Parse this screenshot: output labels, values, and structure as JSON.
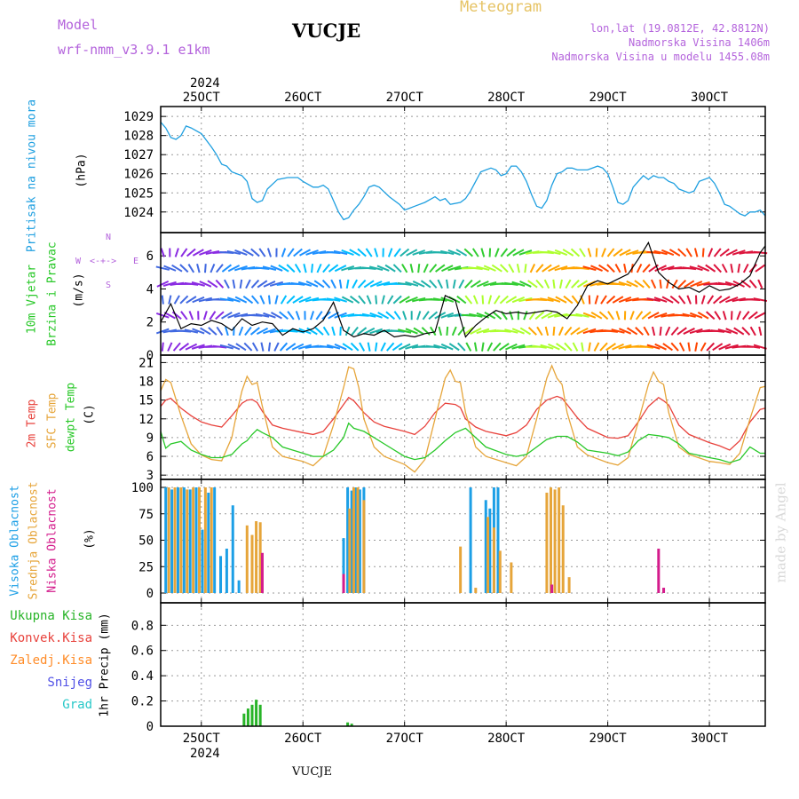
{
  "header": {
    "model_label": "Model",
    "model_name": "wrf-nmm_v3.9.1 e1km",
    "station": "VUCJE",
    "meteogram_title": "Meteogram",
    "lonlat": "lon,lat (19.0812E, 42.8812N)",
    "elevation": "Nadmorska Visina 1406m",
    "model_elevation": "Nadmorska Visina u modelu 1455.08m",
    "footer_station": "VUCJE",
    "watermark": "made by Angel"
  },
  "colors": {
    "pressure": "#1e9fe0",
    "temp2m": "#e8423c",
    "sfc_temp": "#e6a53a",
    "dewpt": "#28c828",
    "high_cloud": "#1c9fe6",
    "mid_cloud": "#e6a53a",
    "low_cloud": "#d41c8c",
    "total_precip": "#28b428",
    "conv_precip": "#e8423c",
    "freezing_precip": "#ff8c28",
    "snow": "#5050e6",
    "graupel": "#28c8c8",
    "wind_label": "#b464dc"
  },
  "time_axis": {
    "year": "2024",
    "tick_labels": [
      "25OCT",
      "26OCT",
      "27OCT",
      "28OCT",
      "29OCT",
      "30OCT"
    ],
    "tick_days": [
      25,
      26,
      27,
      28,
      29,
      30
    ],
    "start_day": 24.6,
    "end_day": 30.55
  },
  "chart_data": [
    {
      "type": "line",
      "id": "pressure",
      "ylabel": "(hPa)",
      "side_labels": [
        "Pritisak na nivou mora"
      ],
      "ylim": [
        1023.2,
        1029.1
      ],
      "yticks": [
        1024,
        1025,
        1026,
        1027,
        1028,
        1029
      ],
      "grid": true,
      "series": [
        {
          "color_key": "pressure",
          "x": [
            24.6,
            24.65,
            24.7,
            24.75,
            24.8,
            24.85,
            24.9,
            25.0,
            25.1,
            25.15,
            25.2,
            25.25,
            25.3,
            25.4,
            25.45,
            25.5,
            25.55,
            25.6,
            25.65,
            25.75,
            25.85,
            25.95,
            26.0,
            26.1,
            26.15,
            26.2,
            26.25,
            26.3,
            26.35,
            26.4,
            26.45,
            26.5,
            26.55,
            26.6,
            26.65,
            26.7,
            26.75,
            26.85,
            26.95,
            27.0,
            27.05,
            27.1,
            27.2,
            27.3,
            27.35,
            27.4,
            27.45,
            27.55,
            27.6,
            27.65,
            27.7,
            27.75,
            27.8,
            27.85,
            27.9,
            27.95,
            28.0,
            28.05,
            28.1,
            28.15,
            28.2,
            28.25,
            28.3,
            28.35,
            28.4,
            28.45,
            28.5,
            28.55,
            28.6,
            28.65,
            28.7,
            28.8,
            28.9,
            28.95,
            29.0,
            29.05,
            29.1,
            29.15,
            29.2,
            29.25,
            29.3,
            29.35,
            29.4,
            29.45,
            29.5,
            29.55,
            29.6,
            29.65,
            29.7,
            29.8,
            29.85,
            29.9,
            30.0,
            30.05,
            30.1,
            30.15,
            30.2,
            30.25,
            30.3,
            30.35,
            30.4,
            30.45,
            30.5,
            30.55
          ],
          "y": [
            1028.7,
            1028.4,
            1027.9,
            1027.8,
            1028.0,
            1028.5,
            1028.4,
            1028.1,
            1027.4,
            1027.0,
            1026.5,
            1026.4,
            1026.1,
            1025.9,
            1025.6,
            1024.7,
            1024.5,
            1024.6,
            1025.2,
            1025.7,
            1025.8,
            1025.8,
            1025.6,
            1025.3,
            1025.3,
            1025.4,
            1025.2,
            1024.6,
            1024.0,
            1023.6,
            1023.7,
            1024.1,
            1024.4,
            1024.8,
            1025.3,
            1025.4,
            1025.3,
            1024.8,
            1024.4,
            1024.1,
            1024.2,
            1024.3,
            1024.5,
            1024.8,
            1024.6,
            1024.7,
            1024.4,
            1024.5,
            1024.7,
            1025.1,
            1025.6,
            1026.1,
            1026.2,
            1026.3,
            1026.2,
            1025.9,
            1026.0,
            1026.4,
            1026.4,
            1026.1,
            1025.6,
            1024.9,
            1024.3,
            1024.2,
            1024.6,
            1025.4,
            1026.0,
            1026.1,
            1026.3,
            1026.3,
            1026.2,
            1026.2,
            1026.4,
            1026.3,
            1026.0,
            1025.3,
            1024.5,
            1024.4,
            1024.6,
            1025.3,
            1025.6,
            1025.9,
            1025.7,
            1025.9,
            1025.8,
            1025.8,
            1025.6,
            1025.5,
            1025.2,
            1025.0,
            1025.1,
            1025.6,
            1025.8,
            1025.5,
            1025.0,
            1024.4,
            1024.3,
            1024.1,
            1023.9,
            1023.8,
            1024.0,
            1024.0,
            1024.1,
            1023.8
          ]
        }
      ]
    },
    {
      "type": "line",
      "id": "wind",
      "ylabel": "(m/s)",
      "side_labels": [
        "10m Vjetar",
        "Brzina i Pravac"
      ],
      "compass": {
        "n": "N",
        "s": "S",
        "w": "W",
        "e": "E"
      },
      "ylim": [
        0,
        7.3
      ],
      "yticks": [
        0,
        2,
        4,
        6
      ],
      "grid": false,
      "series": [
        {
          "name": "speed",
          "x": [
            24.6,
            24.7,
            24.8,
            24.9,
            25.0,
            25.1,
            25.2,
            25.3,
            25.4,
            25.5,
            25.6,
            25.7,
            25.8,
            25.9,
            26.0,
            26.1,
            26.2,
            26.3,
            26.4,
            26.5,
            26.6,
            26.7,
            26.8,
            26.9,
            27.0,
            27.1,
            27.2,
            27.3,
            27.4,
            27.5,
            27.6,
            27.7,
            27.8,
            27.9,
            28.0,
            28.1,
            28.2,
            28.3,
            28.4,
            28.5,
            28.6,
            28.7,
            28.8,
            28.9,
            29.0,
            29.1,
            29.2,
            29.3,
            29.4,
            29.5,
            29.6,
            29.7,
            29.8,
            29.9,
            30.0,
            30.1,
            30.2,
            30.3,
            30.4,
            30.5,
            30.55
          ],
          "y": [
            2.0,
            3.1,
            1.6,
            1.9,
            1.8,
            2.1,
            1.9,
            1.5,
            2.2,
            1.8,
            2.0,
            1.9,
            1.2,
            1.6,
            1.4,
            1.6,
            2.1,
            3.2,
            1.5,
            1.1,
            1.3,
            1.2,
            1.5,
            1.1,
            1.2,
            1.1,
            1.3,
            1.4,
            3.6,
            3.3,
            1.1,
            1.8,
            2.3,
            2.7,
            2.5,
            2.6,
            2.5,
            2.6,
            2.7,
            2.6,
            2.2,
            3.0,
            4.2,
            4.5,
            4.3,
            4.6,
            4.9,
            5.8,
            6.8,
            5.0,
            4.4,
            4.0,
            4.1,
            3.8,
            4.2,
            3.9,
            4.0,
            4.3,
            4.8,
            6.2,
            6.6
          ]
        }
      ]
    },
    {
      "type": "line",
      "id": "temperature",
      "ylabel": "(C)",
      "side_labels": [
        "2m Temp",
        "SFC Temp",
        "dewpt Temp"
      ],
      "ylim": [
        2.6,
        21.2
      ],
      "yticks": [
        3,
        6,
        9,
        12,
        15,
        18,
        21
      ],
      "grid": true,
      "series": [
        {
          "name": "2m Temp",
          "color_key": "temp2m",
          "x": [
            24.6,
            24.65,
            24.7,
            24.8,
            24.9,
            25.0,
            25.1,
            25.2,
            25.3,
            25.4,
            25.45,
            25.5,
            25.55,
            25.6,
            25.7,
            25.8,
            26.0,
            26.1,
            26.2,
            26.3,
            26.4,
            26.45,
            26.5,
            26.6,
            26.7,
            26.8,
            27.0,
            27.1,
            27.2,
            27.3,
            27.4,
            27.5,
            27.55,
            27.6,
            27.7,
            27.8,
            28.0,
            28.1,
            28.2,
            28.3,
            28.4,
            28.5,
            28.55,
            28.6,
            28.7,
            28.8,
            29.0,
            29.1,
            29.2,
            29.3,
            29.4,
            29.5,
            29.55,
            29.6,
            29.7,
            29.8,
            30.0,
            30.1,
            30.2,
            30.3,
            30.4,
            30.5,
            30.55
          ],
          "y": [
            14.0,
            15.0,
            15.3,
            13.7,
            12.5,
            11.5,
            11.0,
            10.7,
            12.5,
            14.5,
            15.0,
            15.1,
            14.6,
            13.2,
            11.0,
            10.5,
            9.8,
            9.5,
            10.0,
            12.0,
            14.3,
            15.4,
            14.9,
            13.0,
            11.5,
            10.8,
            10.0,
            9.5,
            10.8,
            13.0,
            14.5,
            14.3,
            13.8,
            12.0,
            10.7,
            10.0,
            9.3,
            9.8,
            11.0,
            13.5,
            15.0,
            15.6,
            15.3,
            14.3,
            12.2,
            10.5,
            9.0,
            8.9,
            9.3,
            11.5,
            14.0,
            15.4,
            14.9,
            14.2,
            11.0,
            9.5,
            8.2,
            7.7,
            7.0,
            8.5,
            11.5,
            13.5,
            13.7
          ]
        },
        {
          "name": "SFC Temp",
          "color_key": "sfc_temp",
          "x": [
            24.6,
            24.65,
            24.7,
            24.8,
            24.9,
            25.0,
            25.1,
            25.2,
            25.3,
            25.35,
            25.4,
            25.45,
            25.5,
            25.55,
            25.6,
            25.7,
            25.8,
            26.0,
            26.1,
            26.2,
            26.3,
            26.4,
            26.45,
            26.5,
            26.55,
            26.6,
            26.7,
            26.8,
            27.0,
            27.1,
            27.2,
            27.3,
            27.4,
            27.45,
            27.5,
            27.55,
            27.6,
            27.7,
            27.8,
            28.0,
            28.1,
            28.2,
            28.3,
            28.4,
            28.45,
            28.5,
            28.55,
            28.6,
            28.7,
            28.8,
            29.0,
            29.1,
            29.2,
            29.3,
            29.4,
            29.45,
            29.5,
            29.55,
            29.6,
            29.7,
            29.8,
            30.0,
            30.1,
            30.2,
            30.3,
            30.4,
            30.5,
            30.55
          ],
          "y": [
            16.5,
            18.3,
            17.8,
            12.5,
            8.0,
            6.2,
            5.5,
            5.3,
            9.0,
            13.0,
            16.5,
            18.8,
            17.5,
            17.8,
            14.0,
            7.5,
            6.0,
            5.2,
            4.5,
            6.0,
            11.0,
            17.0,
            20.3,
            20.0,
            17.0,
            12.0,
            7.5,
            6.0,
            4.7,
            3.5,
            5.5,
            12.0,
            18.5,
            19.8,
            18.0,
            17.8,
            13.0,
            7.5,
            6.0,
            5.0,
            4.5,
            6.0,
            12.0,
            18.5,
            20.5,
            18.5,
            17.5,
            13.0,
            7.5,
            6.2,
            5.0,
            4.6,
            5.8,
            11.5,
            17.5,
            19.5,
            18.0,
            17.5,
            13.0,
            7.5,
            6.3,
            5.2,
            5.0,
            4.7,
            6.5,
            12.0,
            17.0,
            17.2
          ]
        },
        {
          "name": "dewpt Temp",
          "color_key": "dewpt",
          "x": [
            24.6,
            24.65,
            24.7,
            24.8,
            24.9,
            25.0,
            25.1,
            25.2,
            25.3,
            25.4,
            25.45,
            25.5,
            25.55,
            25.6,
            25.7,
            25.8,
            26.0,
            26.1,
            26.2,
            26.3,
            26.4,
            26.45,
            26.5,
            26.6,
            26.7,
            26.8,
            27.0,
            27.1,
            27.2,
            27.3,
            27.4,
            27.5,
            27.6,
            27.7,
            27.8,
            28.0,
            28.1,
            28.2,
            28.3,
            28.4,
            28.5,
            28.6,
            28.7,
            28.8,
            29.0,
            29.1,
            29.2,
            29.3,
            29.4,
            29.5,
            29.6,
            29.7,
            29.8,
            30.0,
            30.1,
            30.2,
            30.3,
            30.4,
            30.5,
            30.55
          ],
          "y": [
            10.0,
            7.3,
            8.0,
            8.4,
            7.0,
            6.3,
            5.8,
            5.8,
            6.3,
            8.0,
            8.5,
            9.5,
            10.3,
            9.8,
            9.0,
            7.5,
            6.5,
            6.0,
            6.0,
            7.0,
            9.0,
            11.3,
            10.5,
            10.0,
            9.0,
            8.0,
            6.0,
            5.5,
            5.8,
            7.0,
            8.5,
            9.8,
            10.5,
            9.0,
            7.5,
            6.3,
            6.0,
            6.3,
            7.5,
            8.7,
            9.2,
            9.2,
            8.3,
            7.0,
            6.5,
            6.1,
            6.7,
            8.5,
            9.5,
            9.3,
            9.0,
            8.0,
            6.5,
            5.8,
            5.5,
            5.0,
            5.5,
            7.5,
            6.5,
            6.5
          ]
        }
      ]
    },
    {
      "type": "bar",
      "id": "clouds",
      "ylabel": "(%)",
      "side_labels": [
        "Visoka Oblacnost",
        "Srednja Oblacnost",
        "Niska Oblacnost"
      ],
      "ylim": [
        0,
        100
      ],
      "yticks": [
        0,
        25,
        50,
        75,
        100
      ],
      "grid": true,
      "series": [
        {
          "name": "Visoka Oblacnost",
          "color_key": "high_cloud",
          "x": [
            24.65,
            24.71,
            24.77,
            24.83,
            24.89,
            24.95,
            25.01,
            25.07,
            25.13,
            25.19,
            25.25,
            25.31,
            25.37,
            26.4,
            26.44,
            26.48,
            26.52,
            26.56,
            26.6,
            27.65,
            27.8,
            27.84,
            27.88,
            27.92
          ],
          "values": [
            100,
            98,
            100,
            100,
            98,
            100,
            60,
            95,
            100,
            35,
            42,
            83,
            12,
            52,
            100,
            97,
            100,
            98,
            100,
            100,
            88,
            80,
            100,
            100
          ]
        },
        {
          "name": "Srednja Oblacnost",
          "color_key": "mid_cloud",
          "x": [
            24.68,
            24.74,
            24.8,
            24.86,
            24.92,
            24.98,
            25.04,
            25.1,
            25.45,
            25.5,
            25.54,
            25.58,
            26.46,
            26.5,
            26.54,
            26.6,
            27.55,
            27.7,
            27.82,
            27.88,
            27.94,
            28.05,
            28.4,
            28.44,
            28.48,
            28.52,
            28.56,
            28.62
          ],
          "values": [
            100,
            100,
            100,
            98,
            100,
            100,
            100,
            100,
            64,
            55,
            68,
            67,
            80,
            100,
            100,
            88,
            44,
            5,
            72,
            62,
            40,
            29,
            95,
            100,
            98,
            100,
            83,
            15
          ]
        },
        {
          "name": "Niska Oblacnost",
          "color_key": "low_cloud",
          "x": [
            25.6,
            26.4,
            28.45,
            29.5,
            29.55
          ],
          "values": [
            38,
            18,
            8,
            42,
            5
          ]
        }
      ]
    },
    {
      "type": "bar",
      "id": "precip",
      "ylabel": "1hr Precip (mm)",
      "side_labels": [
        "Ukupna Kisa",
        "Konvek.Kisa",
        "Zaledj.Kisa",
        "Snijeg",
        "Grad"
      ],
      "ylim": [
        0,
        0.95
      ],
      "yticks": [
        0,
        0.2,
        0.4,
        0.6,
        0.8
      ],
      "grid": true,
      "series": [
        {
          "name": "Ukupna Kisa",
          "color_key": "total_precip",
          "x": [
            25.42,
            25.46,
            25.5,
            25.54,
            25.58,
            26.44,
            26.48
          ],
          "values": [
            0.1,
            0.14,
            0.17,
            0.21,
            0.17,
            0.03,
            0.02
          ]
        }
      ]
    }
  ]
}
